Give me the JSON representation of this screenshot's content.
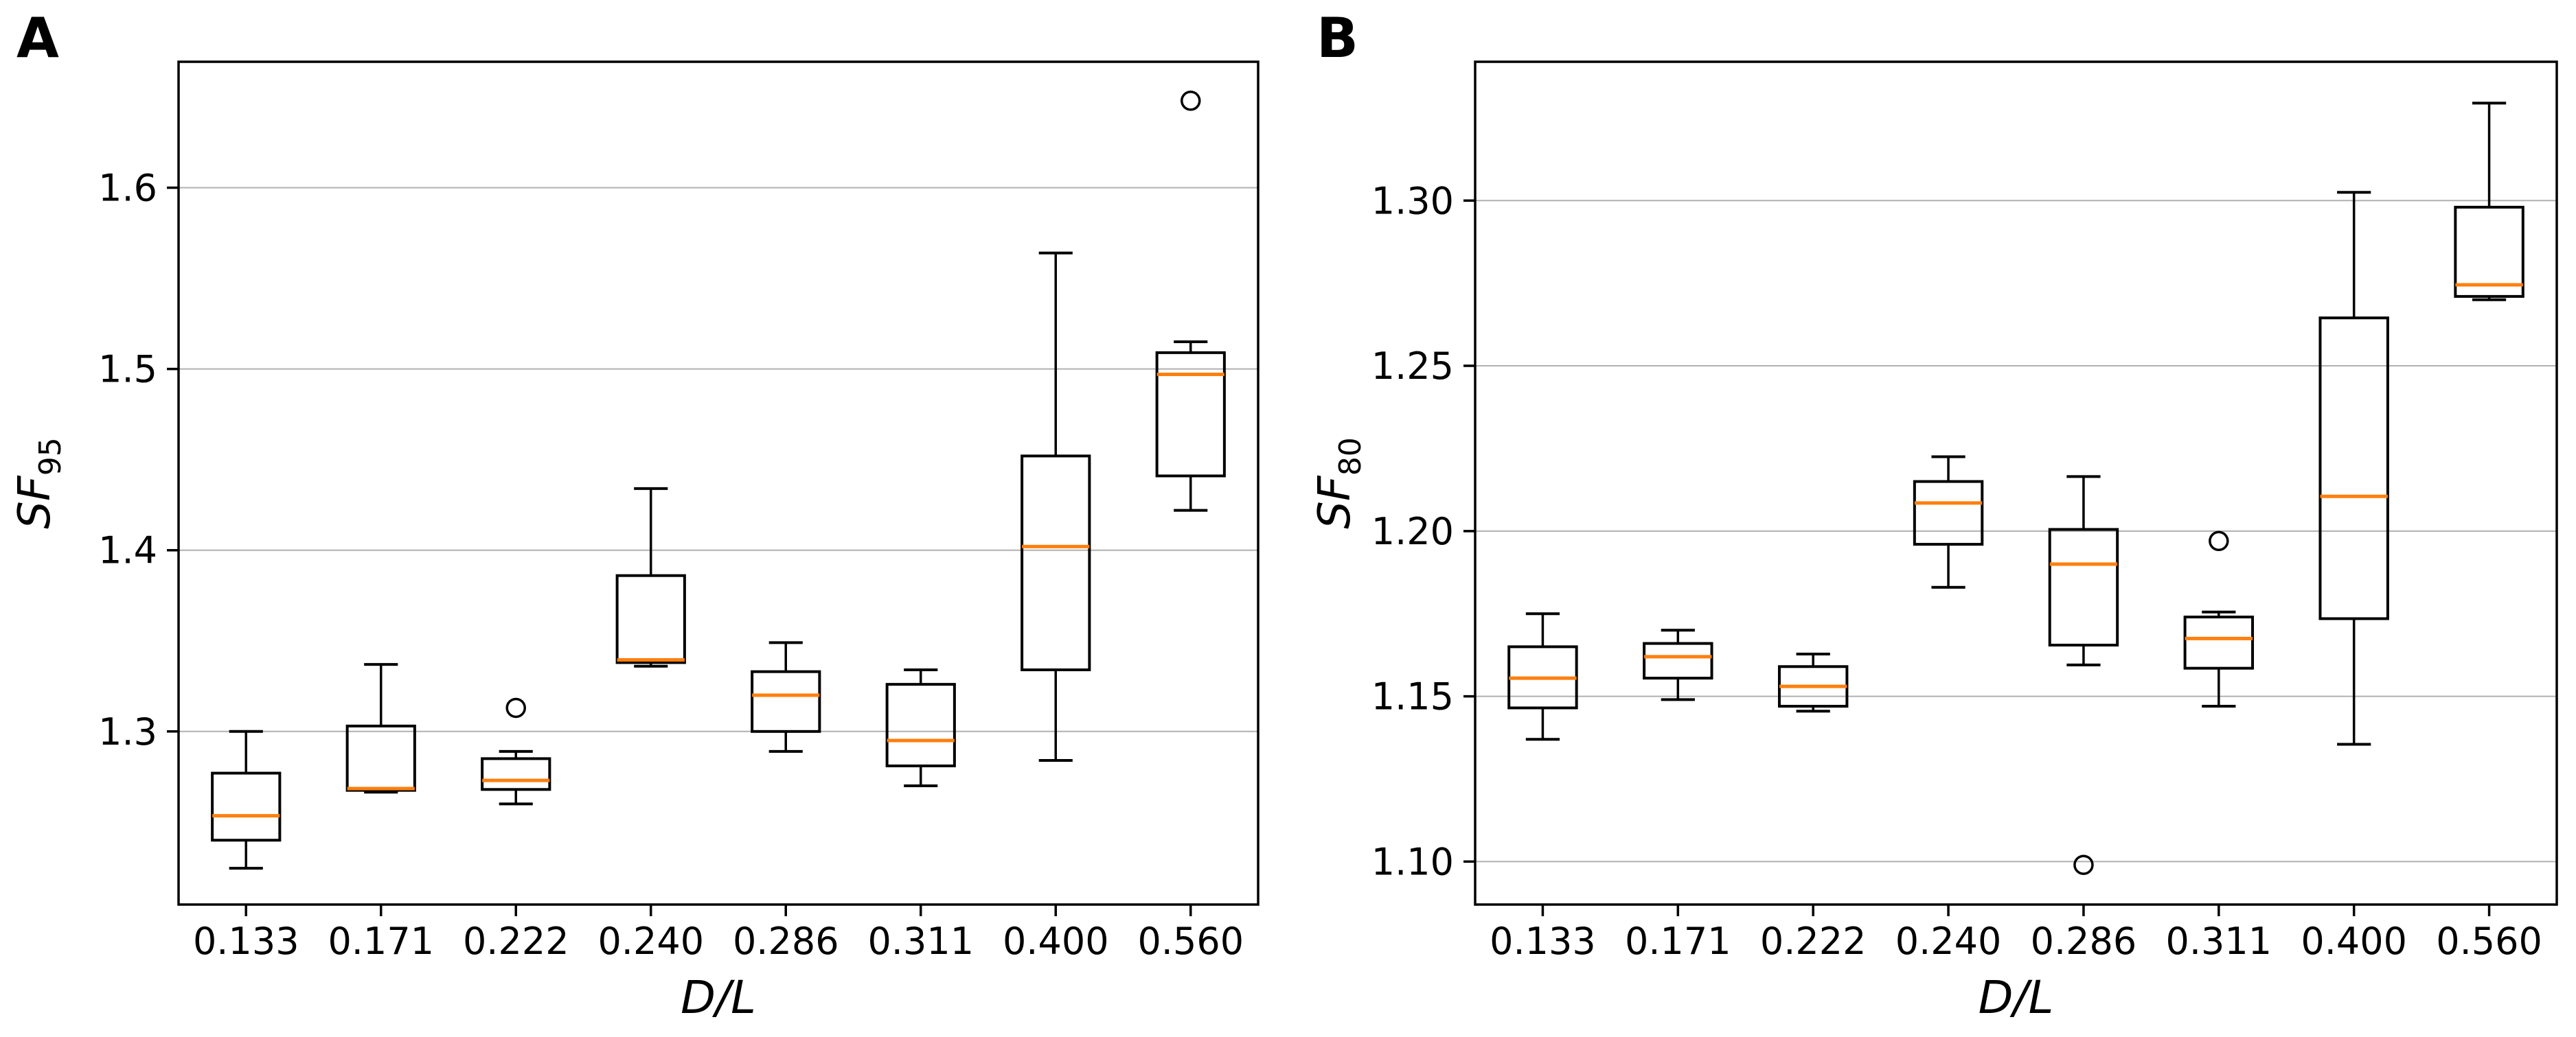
{
  "figure": {
    "background": "#ffffff",
    "style": {
      "median_color": "#ff7f0e",
      "line_color": "#000000",
      "grid_color": "#b0b0b0",
      "text_color": "#000000"
    }
  },
  "chart_data": [
    {
      "type": "boxplot",
      "panel_label": "A",
      "xlabel": "D/L",
      "ylabel": "SF",
      "ylabel_subscript": "95",
      "categories": [
        "0.133",
        "0.171",
        "0.222",
        "0.240",
        "0.286",
        "0.311",
        "0.400",
        "0.560"
      ],
      "ylim": [
        1.2045,
        1.6695
      ],
      "yticks": [
        1.3,
        1.4,
        1.5,
        1.6
      ],
      "ytick_labels": [
        "1.3",
        "1.4",
        "1.5",
        "1.6"
      ],
      "grid": true,
      "boxes": [
        {
          "whislo": 1.2245,
          "q1": 1.24,
          "med": 1.2535,
          "q3": 1.277,
          "whishi": 1.3,
          "fliers": []
        },
        {
          "whislo": 1.2665,
          "q1": 1.2675,
          "med": 1.2685,
          "q3": 1.303,
          "whishi": 1.337,
          "fliers": []
        },
        {
          "whislo": 1.26,
          "q1": 1.268,
          "med": 1.273,
          "q3": 1.285,
          "whishi": 1.289,
          "fliers": [
            1.313
          ]
        },
        {
          "whislo": 1.336,
          "q1": 1.338,
          "med": 1.3395,
          "q3": 1.386,
          "whishi": 1.434,
          "fliers": []
        },
        {
          "whislo": 1.289,
          "q1": 1.3,
          "med": 1.32,
          "q3": 1.333,
          "whishi": 1.349,
          "fliers": []
        },
        {
          "whislo": 1.27,
          "q1": 1.281,
          "med": 1.295,
          "q3": 1.326,
          "whishi": 1.334,
          "fliers": []
        },
        {
          "whislo": 1.284,
          "q1": 1.334,
          "med": 1.402,
          "q3": 1.452,
          "whishi": 1.564,
          "fliers": []
        },
        {
          "whislo": 1.422,
          "q1": 1.441,
          "med": 1.497,
          "q3": 1.509,
          "whishi": 1.515,
          "fliers": [
            1.648
          ]
        }
      ]
    },
    {
      "type": "boxplot",
      "panel_label": "B",
      "xlabel": "D/L",
      "ylabel": "SF",
      "ylabel_subscript": "80",
      "categories": [
        "0.133",
        "0.171",
        "0.222",
        "0.240",
        "0.286",
        "0.311",
        "0.400",
        "0.560"
      ],
      "ylim": [
        1.087,
        1.342
      ],
      "yticks": [
        1.1,
        1.15,
        1.2,
        1.25,
        1.3
      ],
      "ytick_labels": [
        "1.10",
        "1.15",
        "1.20",
        "1.25",
        "1.30"
      ],
      "grid": true,
      "boxes": [
        {
          "whislo": 1.137,
          "q1": 1.1465,
          "med": 1.1555,
          "q3": 1.165,
          "whishi": 1.175,
          "fliers": []
        },
        {
          "whislo": 1.149,
          "q1": 1.1555,
          "med": 1.162,
          "q3": 1.166,
          "whishi": 1.17,
          "fliers": []
        },
        {
          "whislo": 1.1455,
          "q1": 1.147,
          "med": 1.153,
          "q3": 1.159,
          "whishi": 1.1628,
          "fliers": []
        },
        {
          "whislo": 1.183,
          "q1": 1.196,
          "med": 1.2085,
          "q3": 1.215,
          "whishi": 1.2225,
          "fliers": []
        },
        {
          "whislo": 1.1595,
          "q1": 1.1655,
          "med": 1.19,
          "q3": 1.2005,
          "whishi": 1.2165,
          "fliers": [
            1.099
          ]
        },
        {
          "whislo": 1.147,
          "q1": 1.1585,
          "med": 1.1675,
          "q3": 1.174,
          "whishi": 1.1755,
          "fliers": [
            1.197
          ]
        },
        {
          "whislo": 1.1355,
          "q1": 1.1735,
          "med": 1.2105,
          "q3": 1.2645,
          "whishi": 1.3025,
          "fliers": []
        },
        {
          "whislo": 1.27,
          "q1": 1.271,
          "med": 1.2745,
          "q3": 1.298,
          "whishi": 1.3295,
          "fliers": []
        }
      ]
    }
  ]
}
